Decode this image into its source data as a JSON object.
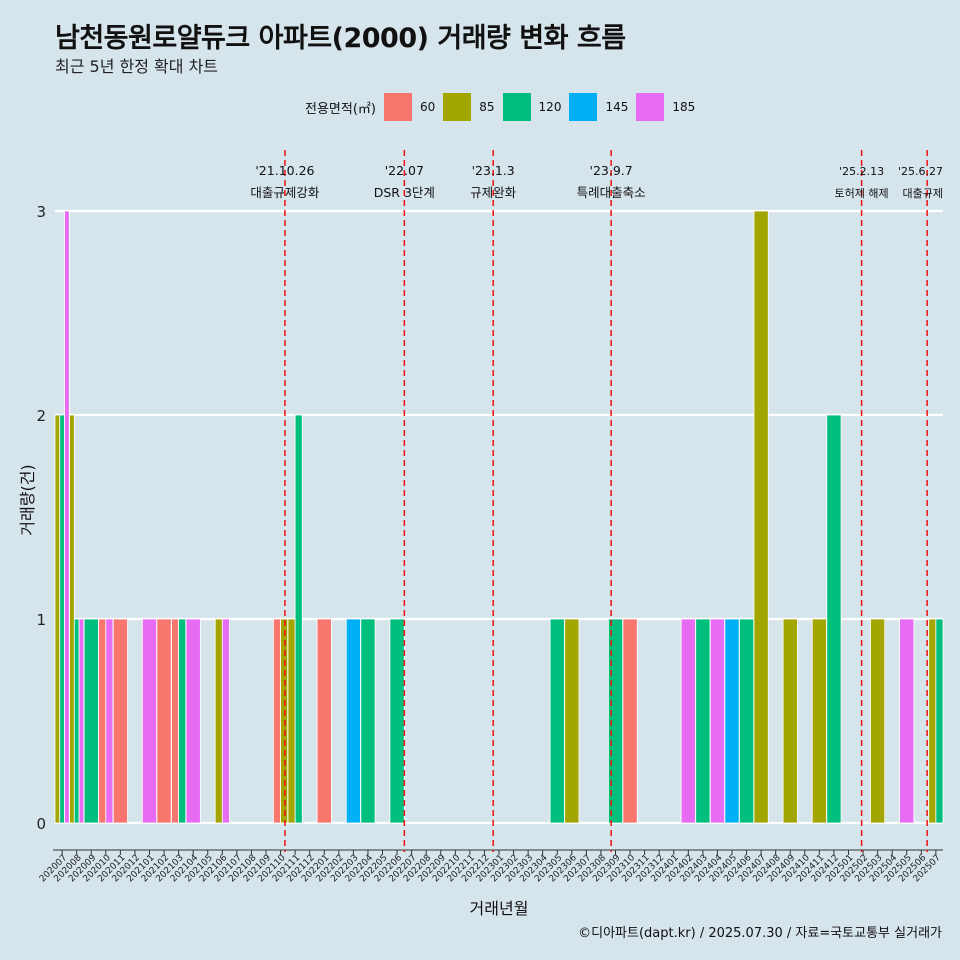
{
  "title": "남천동원로얄듀크 아파트(2000) 거래량 변화 흐름",
  "subtitle": "최근 5년 한정 확대 차트",
  "caption": "©디아파트(dapt.kr) / 2025.07.30 / 자료=국토교통부 실거래가",
  "legend": {
    "title": "전용면적(㎡)",
    "items": [
      {
        "label": "60",
        "color": "#F8766D"
      },
      {
        "label": "85",
        "color": "#A3A500"
      },
      {
        "label": "120",
        "color": "#00BF7D"
      },
      {
        "label": "145",
        "color": "#00B0F6"
      },
      {
        "label": "185",
        "color": "#E76BF3"
      }
    ]
  },
  "chart_data": {
    "type": "bar",
    "xlabel": "거래년월",
    "ylabel": "거래량(건)",
    "ylim": [
      0,
      3
    ],
    "yticks": [
      0,
      1,
      2,
      3
    ],
    "grid": true,
    "legend_position": "top",
    "categories": [
      "202007",
      "202008",
      "202009",
      "202010",
      "202011",
      "202012",
      "202101",
      "202102",
      "202103",
      "202104",
      "202105",
      "202106",
      "202107",
      "202108",
      "202109",
      "202110",
      "202111",
      "202112",
      "202201",
      "202202",
      "202203",
      "202204",
      "202205",
      "202206",
      "202207",
      "202208",
      "202209",
      "202210",
      "202211",
      "202212",
      "202301",
      "202302",
      "202303",
      "202304",
      "202305",
      "202306",
      "202307",
      "202308",
      "202309",
      "202310",
      "202311",
      "202312",
      "202401",
      "202402",
      "202403",
      "202404",
      "202405",
      "202406",
      "202407",
      "202408",
      "202409",
      "202410",
      "202411",
      "202412",
      "202501",
      "202502",
      "202503",
      "202504",
      "202505",
      "202506",
      "202507"
    ],
    "bars": [
      {
        "month": "202007",
        "area": "85",
        "value": 2
      },
      {
        "month": "202007",
        "area": "120",
        "value": 2
      },
      {
        "month": "202007",
        "area": "185",
        "value": 3
      },
      {
        "month": "202008",
        "area": "85",
        "value": 2
      },
      {
        "month": "202008",
        "area": "120",
        "value": 1
      },
      {
        "month": "202008",
        "area": "185",
        "value": 1
      },
      {
        "month": "202009",
        "area": "120",
        "value": 1
      },
      {
        "month": "202010",
        "area": "185",
        "value": 1
      },
      {
        "month": "202010",
        "area": "60",
        "value": 1
      },
      {
        "month": "202011",
        "area": "60",
        "value": 1
      },
      {
        "month": "202101",
        "area": "185",
        "value": 1
      },
      {
        "month": "202102",
        "area": "60",
        "value": 1
      },
      {
        "month": "202103",
        "area": "60",
        "value": 1
      },
      {
        "month": "202103",
        "area": "120",
        "value": 1
      },
      {
        "month": "202104",
        "area": "185",
        "value": 1
      },
      {
        "month": "202106",
        "area": "85",
        "value": 1
      },
      {
        "month": "202106",
        "area": "185",
        "value": 1
      },
      {
        "month": "202110",
        "area": "85",
        "value": 1
      },
      {
        "month": "202110",
        "area": "60",
        "value": 1
      },
      {
        "month": "202111",
        "area": "85",
        "value": 1
      },
      {
        "month": "202111",
        "area": "120",
        "value": 2
      },
      {
        "month": "202201",
        "area": "60",
        "value": 1
      },
      {
        "month": "202203",
        "area": "145",
        "value": 1
      },
      {
        "month": "202204",
        "area": "120",
        "value": 1
      },
      {
        "month": "202206",
        "area": "120",
        "value": 1
      },
      {
        "month": "202305",
        "area": "120",
        "value": 1
      },
      {
        "month": "202306",
        "area": "85",
        "value": 1
      },
      {
        "month": "202309",
        "area": "120",
        "value": 1
      },
      {
        "month": "202310",
        "area": "60",
        "value": 1
      },
      {
        "month": "202402",
        "area": "185",
        "value": 1
      },
      {
        "month": "202403",
        "area": "120",
        "value": 1
      },
      {
        "month": "202404",
        "area": "185",
        "value": 1
      },
      {
        "month": "202405",
        "area": "145",
        "value": 1
      },
      {
        "month": "202406",
        "area": "120",
        "value": 1
      },
      {
        "month": "202407",
        "area": "85",
        "value": 3
      },
      {
        "month": "202409",
        "area": "85",
        "value": 1
      },
      {
        "month": "202411",
        "area": "85",
        "value": 1
      },
      {
        "month": "202412",
        "area": "120",
        "value": 2
      },
      {
        "month": "202503",
        "area": "85",
        "value": 1
      },
      {
        "month": "202505",
        "area": "185",
        "value": 1
      },
      {
        "month": "202507",
        "area": "85",
        "value": 1
      },
      {
        "month": "202507",
        "area": "120",
        "value": 1
      }
    ],
    "annotations": [
      {
        "date": "'21.10.26",
        "text": "대출규제강화",
        "month": "202110",
        "offset": 0.8
      },
      {
        "date": "'22.07",
        "text": "DSR 3단계",
        "month": "202207",
        "offset": 0
      },
      {
        "date": "'23.1.3",
        "text": "규제완화",
        "month": "202301",
        "offset": 0.1
      },
      {
        "date": "'23.9.7",
        "text": "특례대출축소",
        "month": "202309",
        "offset": 0.2
      },
      {
        "date": "'25.2.13",
        "text": "토허제 해제",
        "month": "202502",
        "offset": 0.4
      },
      {
        "date": "'25.6.27",
        "text": "대출규제",
        "month": "202506",
        "offset": 0.9
      }
    ]
  }
}
